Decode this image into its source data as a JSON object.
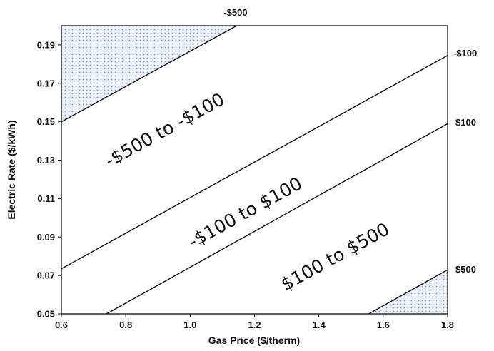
{
  "chart_data": {
    "type": "line",
    "xlabel": "Gas Price ($/therm)",
    "ylabel": "Electric Rate ($/kWh)",
    "xlim": [
      0.6,
      1.8
    ],
    "ylim": [
      0.05,
      0.2
    ],
    "x_ticks": [
      "0.6",
      "0.8",
      "1.0",
      "1.2",
      "1.4",
      "1.6",
      "1.8"
    ],
    "y_ticks": [
      "0.05",
      "0.07",
      "0.09",
      "0.11",
      "0.13",
      "0.15",
      "0.17",
      "0.19"
    ],
    "series": [
      {
        "name": "-$500",
        "x": [
          0.6,
          1.145
        ],
        "y": [
          0.15,
          0.2
        ]
      },
      {
        "name": "-$100",
        "x": [
          0.6,
          1.8
        ],
        "y": [
          0.0735,
          0.1845
        ]
      },
      {
        "name": "$100",
        "x": [
          0.74,
          1.8
        ],
        "y": [
          0.05,
          0.149
        ]
      },
      {
        "name": "$500",
        "x": [
          1.555,
          1.8
        ],
        "y": [
          0.05,
          0.073
        ]
      }
    ],
    "shaded_regions": [
      {
        "name": "upper-left",
        "x": [
          0.6,
          1.145,
          0.6
        ],
        "y": [
          0.15,
          0.2,
          0.2
        ],
        "color": "#8fa9d6"
      },
      {
        "name": "lower-right",
        "x": [
          1.555,
          1.8,
          1.8
        ],
        "y": [
          0.05,
          0.073,
          0.05
        ],
        "color": "#8fa9d6"
      }
    ],
    "region_labels": [
      {
        "text": "-$500 to -$100",
        "x": 0.93,
        "y": 0.143
      },
      {
        "text": "-$100 to $100",
        "x": 1.18,
        "y": 0.1
      },
      {
        "text": "$100 to $500",
        "x": 1.46,
        "y": 0.077
      }
    ],
    "line_labels": [
      "-$500",
      "-$100",
      "$100",
      "$500"
    ],
    "grid": false,
    "legend": "none"
  }
}
